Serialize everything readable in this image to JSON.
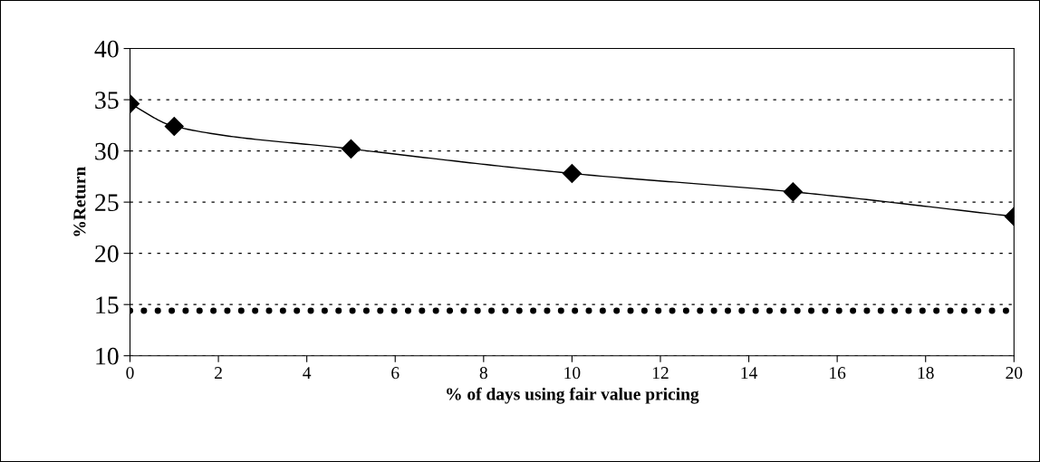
{
  "chart_data": {
    "type": "line",
    "x": [
      0,
      1,
      5,
      10,
      15,
      20
    ],
    "series": [
      {
        "color": "#000000",
        "values": [
          34.6,
          32.4,
          30.2,
          27.8,
          26.0,
          23.6
        ]
      }
    ],
    "marker": "diamond",
    "line_style": "solid",
    "xlabel": "% of days using fair value pricing",
    "ylabel": "%Return",
    "xlim": [
      0,
      20
    ],
    "xticks": [
      0,
      2,
      4,
      6,
      8,
      10,
      12,
      14,
      16,
      18,
      20
    ],
    "ylim": [
      10,
      40
    ],
    "yticks": [
      10,
      15,
      20,
      25,
      30,
      35,
      40
    ],
    "grid": "y",
    "ref_lines": [
      {
        "axis": "y",
        "value": 14.4,
        "color": "#000000",
        "line_style": "dotted"
      }
    ]
  }
}
